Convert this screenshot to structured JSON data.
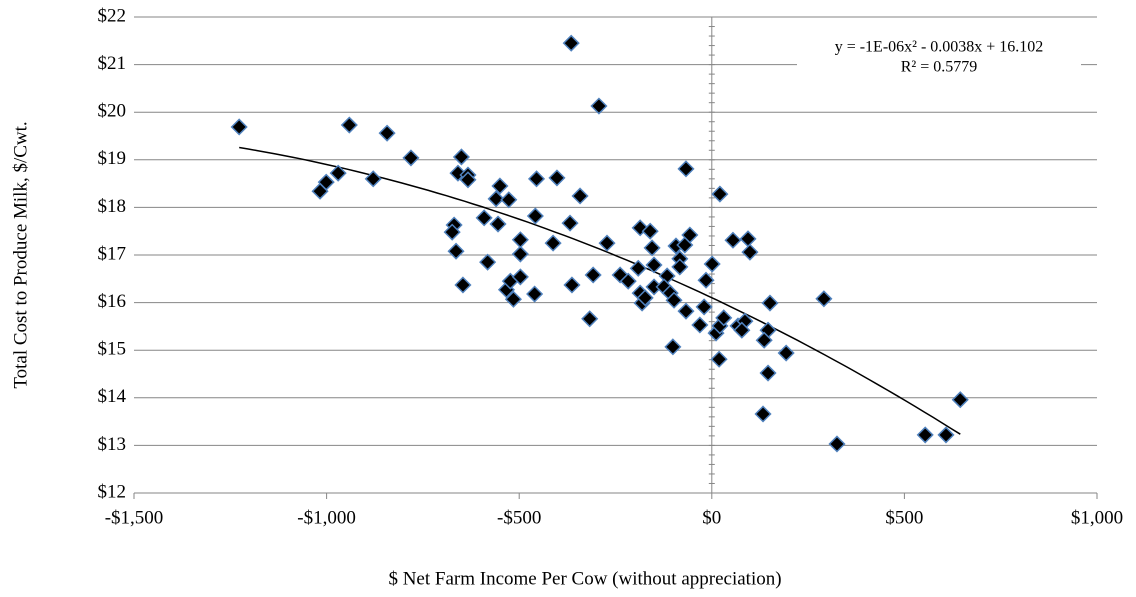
{
  "chart_data": {
    "type": "scatter",
    "x_label": "$ Net Farm Income Per Cow (without appreciation)",
    "y_label": "Total Cost to Produce Milk, $/Cwt.",
    "x": [
      -1227,
      -941,
      -843,
      -781,
      -879,
      -970,
      -1001,
      -1017,
      -365,
      -293,
      -67,
      21,
      -650,
      -659,
      -633,
      -633,
      -550,
      -560,
      -527,
      -555,
      -591,
      -669,
      -674,
      -664,
      -646,
      -582,
      -533,
      -523,
      -515,
      -497,
      -497,
      -497,
      -458,
      -455,
      -402,
      -342,
      -368,
      -412,
      -460,
      -363,
      -308,
      -272,
      -317,
      -238,
      -217,
      -191,
      -186,
      -181,
      -173,
      -186,
      -160,
      -155,
      -150,
      -150,
      -116,
      -124,
      -108,
      -98,
      -93,
      -83,
      -70,
      -57,
      -83,
      -67,
      -31,
      -20,
      -15,
      1,
      11,
      21,
      31,
      19,
      -101,
      55,
      94,
      99,
      68,
      86,
      78,
      151,
      146,
      136,
      146,
      133,
      193,
      291,
      325,
      554,
      608,
      645
    ],
    "y": [
      19.69,
      19.73,
      19.56,
      19.04,
      18.6,
      18.72,
      18.53,
      18.34,
      21.45,
      20.13,
      18.81,
      18.28,
      19.06,
      18.72,
      18.68,
      18.58,
      18.45,
      18.18,
      18.16,
      17.65,
      17.78,
      17.63,
      17.48,
      17.08,
      16.37,
      16.85,
      16.27,
      16.45,
      16.07,
      16.54,
      17.02,
      17.32,
      17.82,
      18.6,
      18.62,
      18.24,
      17.67,
      17.25,
      16.18,
      16.37,
      16.58,
      17.25,
      15.66,
      16.58,
      16.45,
      16.72,
      16.2,
      15.99,
      16.1,
      17.57,
      17.5,
      17.15,
      16.79,
      16.33,
      16.56,
      16.33,
      16.2,
      16.05,
      17.19,
      16.92,
      17.21,
      17.42,
      16.75,
      15.82,
      15.53,
      15.91,
      16.47,
      16.81,
      15.36,
      15.51,
      15.68,
      14.81,
      15.07,
      17.31,
      17.34,
      17.06,
      15.51,
      15.61,
      15.42,
      15.99,
      15.42,
      15.21,
      14.52,
      13.66,
      14.94,
      16.08,
      13.03,
      13.22,
      13.22,
      13.96
    ],
    "marker_color": "#000000",
    "marker_edge_color": "#4f81bd",
    "xlim": [
      -1500,
      1000
    ],
    "xticks": [
      {
        "value": -1500,
        "label": "-$1,500"
      },
      {
        "value": -1000,
        "label": "-$1,000"
      },
      {
        "value": -500,
        "label": "-$500"
      },
      {
        "value": 0,
        "label": "$0"
      },
      {
        "value": 500,
        "label": "$500"
      },
      {
        "value": 1000,
        "label": "$1,000"
      }
    ],
    "ylim": [
      12,
      22
    ],
    "yticks": [
      {
        "value": 12,
        "label": "$12"
      },
      {
        "value": 13,
        "label": "$13"
      },
      {
        "value": 14,
        "label": "$14"
      },
      {
        "value": 15,
        "label": "$15"
      },
      {
        "value": 16,
        "label": "$16"
      },
      {
        "value": 17,
        "label": "$17"
      },
      {
        "value": 18,
        "label": "$18"
      },
      {
        "value": 19,
        "label": "$19"
      },
      {
        "value": 20,
        "label": "$20"
      },
      {
        "value": 21,
        "label": "$21"
      },
      {
        "value": 22,
        "label": "$22"
      }
    ],
    "grid": true,
    "trendline": {
      "equation": "y = -1E-06x² - 0.0038x + 16.102",
      "r_squared": "R² = 0.5779",
      "coefficients": [
        -1e-06,
        -0.0038,
        16.102
      ],
      "color": "#000000"
    }
  }
}
